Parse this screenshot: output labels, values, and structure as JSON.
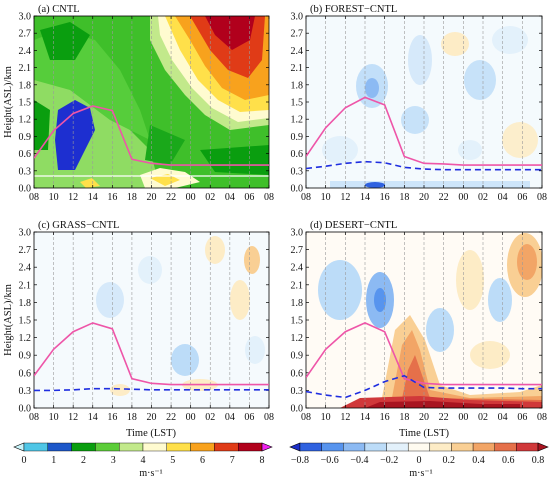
{
  "chart_data": [
    {
      "type": "heatmap",
      "title": "(a) CNTL",
      "panel": "a",
      "ylabel": "Height(ASL)/km",
      "xlabel": "",
      "x_ticks": [
        "08",
        "10",
        "12",
        "14",
        "16",
        "18",
        "20",
        "22",
        "00",
        "02",
        "04",
        "06",
        "08"
      ],
      "y_ticks": [
        "0.0",
        "0.3",
        "0.6",
        "0.9",
        "1.2",
        "1.5",
        "1.8",
        "2.1",
        "2.4",
        "2.7",
        "3.0"
      ],
      "ylim": [
        0,
        3.0
      ],
      "colorbar": "wind",
      "boundary_layer_height_km": {
        "x": [
          0,
          1,
          2,
          3,
          4,
          5,
          6,
          7,
          8,
          9,
          10,
          11,
          12
        ],
        "y": [
          0.52,
          1.0,
          1.3,
          1.43,
          1.35,
          0.5,
          0.43,
          0.4,
          0.4,
          0.4,
          0.4,
          0.4,
          0.4
        ]
      },
      "wind_speed_summary_ms": "weak 1-3 m/s in lower layer, strong jet 6-7 m/s aloft from 00 to 06 LST above 2.2 km, low-level minimum near 12-14 LST"
    },
    {
      "type": "heatmap",
      "title": "(b) FOREST−CNTL",
      "panel": "b",
      "ylabel": "",
      "xlabel": "",
      "x_ticks": [
        "08",
        "10",
        "12",
        "14",
        "16",
        "18",
        "20",
        "22",
        "00",
        "02",
        "04",
        "06",
        "08"
      ],
      "y_ticks": [
        "0.0",
        "0.3",
        "0.6",
        "0.9",
        "1.2",
        "1.5",
        "1.8",
        "2.1",
        "2.4",
        "2.7",
        "3.0"
      ],
      "ylim": [
        0,
        3.0
      ],
      "colorbar": "diff",
      "boundary_layer_height_km": {
        "x": [
          0,
          1,
          2,
          3,
          4,
          5,
          6,
          7,
          8,
          9,
          10,
          11,
          12
        ],
        "y": [
          0.55,
          1.05,
          1.4,
          1.58,
          1.45,
          0.55,
          0.43,
          0.42,
          0.4,
          0.4,
          0.4,
          0.4,
          0.4
        ]
      },
      "boundary_layer_height_dashed_km": {
        "x": [
          0,
          1,
          2,
          3,
          4,
          5,
          6,
          7,
          8,
          9,
          10,
          11,
          12
        ],
        "y": [
          0.34,
          0.38,
          0.43,
          0.46,
          0.44,
          0.36,
          0.33,
          0.32,
          0.32,
          0.32,
          0.32,
          0.32,
          0.32
        ]
      }
    },
    {
      "type": "heatmap",
      "title": "(c) GRASS−CNTL",
      "panel": "c",
      "ylabel": "Height(ASL)/km",
      "xlabel": "Time (LST)",
      "x_ticks": [
        "08",
        "10",
        "12",
        "14",
        "16",
        "18",
        "20",
        "22",
        "00",
        "02",
        "04",
        "06",
        "08"
      ],
      "y_ticks": [
        "0.0",
        "0.3",
        "0.6",
        "0.9",
        "1.2",
        "1.5",
        "1.8",
        "2.1",
        "2.4",
        "2.7",
        "3.0"
      ],
      "ylim": [
        0,
        3.0
      ],
      "colorbar": "wind",
      "boundary_layer_height_km": {
        "x": [
          0,
          1,
          2,
          3,
          4,
          5,
          6,
          7,
          8,
          9,
          10,
          11,
          12
        ],
        "y": [
          0.55,
          1.0,
          1.3,
          1.45,
          1.35,
          0.5,
          0.42,
          0.4,
          0.4,
          0.4,
          0.4,
          0.4,
          0.4
        ]
      },
      "boundary_layer_height_dashed_km": {
        "x": [
          0,
          1,
          2,
          3,
          4,
          5,
          6,
          7,
          8,
          9,
          10,
          11,
          12
        ],
        "y": [
          0.3,
          0.3,
          0.31,
          0.33,
          0.33,
          0.32,
          0.31,
          0.31,
          0.31,
          0.31,
          0.31,
          0.31,
          0.31
        ]
      }
    },
    {
      "type": "heatmap",
      "title": "(d) DESERT−CNTL",
      "panel": "d",
      "ylabel": "",
      "xlabel": "Time (LST)",
      "x_ticks": [
        "08",
        "10",
        "12",
        "14",
        "16",
        "18",
        "20",
        "22",
        "00",
        "02",
        "04",
        "06",
        "08"
      ],
      "y_ticks": [
        "0.0",
        "0.3",
        "0.6",
        "0.9",
        "1.2",
        "1.5",
        "1.8",
        "2.1",
        "2.4",
        "2.7",
        "3.0"
      ],
      "ylim": [
        0,
        3.0
      ],
      "colorbar": "diff",
      "boundary_layer_height_km": {
        "x": [
          0,
          1,
          2,
          3,
          4,
          5,
          6,
          7,
          8,
          9,
          10,
          11,
          12
        ],
        "y": [
          0.52,
          1.0,
          1.3,
          1.45,
          1.3,
          0.5,
          0.42,
          0.4,
          0.4,
          0.4,
          0.4,
          0.4,
          0.4
        ]
      },
      "boundary_layer_height_dashed_km": {
        "x": [
          0,
          1,
          2,
          3,
          4,
          5,
          6,
          7,
          8,
          9,
          10,
          11,
          12
        ],
        "y": [
          0.28,
          0.22,
          0.18,
          0.3,
          0.45,
          0.55,
          0.35,
          0.34,
          0.34,
          0.34,
          0.34,
          0.33,
          0.33
        ]
      }
    }
  ],
  "colorbars": {
    "wind": {
      "ticks": [
        "0",
        "1",
        "2",
        "3",
        "4",
        "5",
        "6",
        "7",
        "8"
      ],
      "unit": "m·s⁻¹",
      "colors": [
        "#c8f4fa",
        "#4fc6e6",
        "#1d57c9",
        "#0a9e0f",
        "#5ccd39",
        "#c2e98b",
        "#fffbd0",
        "#ffe04a",
        "#f8a21d",
        "#e03b17",
        "#b1001c",
        "#ee22ee"
      ]
    },
    "diff": {
      "ticks": [
        "−0.8",
        "−0.6",
        "−0.4",
        "−0.2",
        "0",
        "0.2",
        "0.4",
        "0.6",
        "0.8"
      ],
      "unit": "m·s⁻¹",
      "colors": [
        "#1d2fc8",
        "#2f62e0",
        "#5794ee",
        "#8cbaf3",
        "#bcdcf8",
        "#e3f1fb",
        "#fffbf0",
        "#fdecc6",
        "#f9cf94",
        "#f2a566",
        "#e5704a",
        "#d0383a",
        "#a81420"
      ]
    }
  },
  "series_colors": {
    "boundary_layer_solid": "#ee55a8",
    "boundary_layer_dashed": "#1f2ee0"
  }
}
